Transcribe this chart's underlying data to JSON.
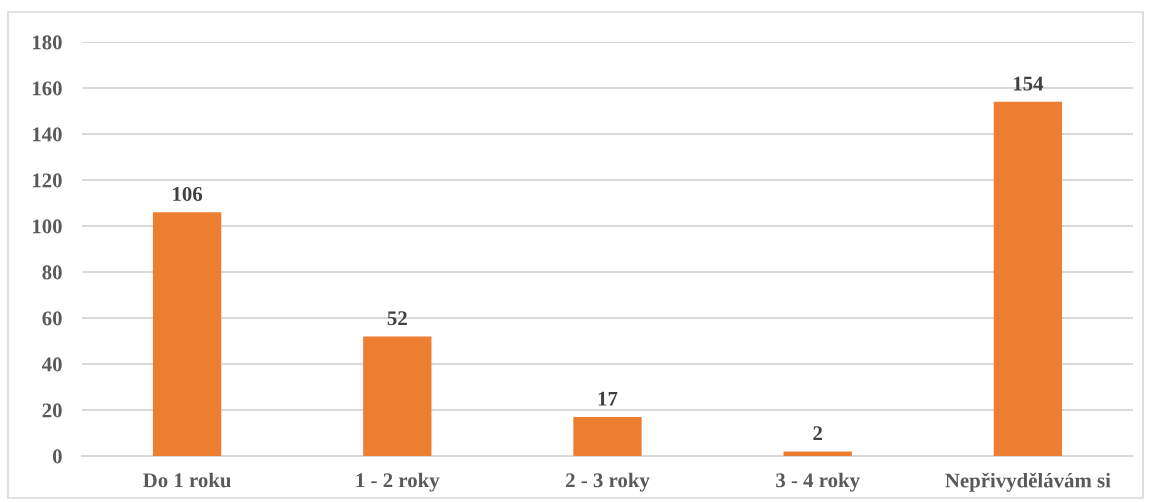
{
  "chart_data": {
    "type": "bar",
    "categories": [
      "Do 1 roku",
      "1 - 2 roky",
      "2 - 3 roky",
      "3 - 4 roky",
      "Nepřivydělávám si"
    ],
    "values": [
      106,
      52,
      17,
      2,
      154
    ],
    "color": "#ed7d31",
    "ylim": [
      0,
      180
    ],
    "yticks": [
      0,
      20,
      40,
      60,
      80,
      100,
      120,
      140,
      160,
      180
    ],
    "grid": "y",
    "data_labels": true
  }
}
